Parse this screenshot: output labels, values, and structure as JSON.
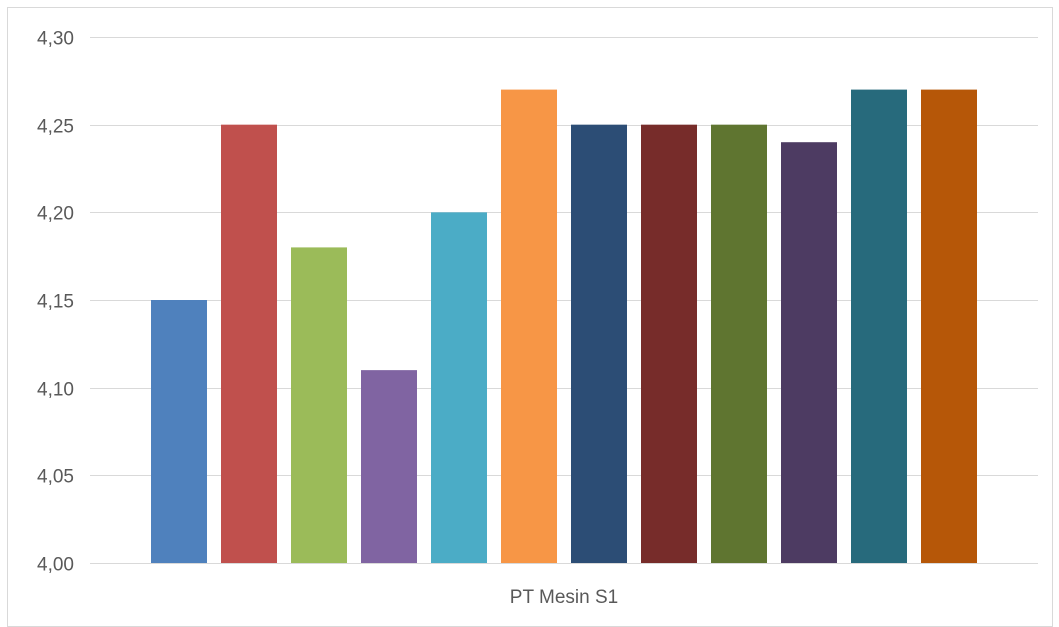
{
  "chart_data": {
    "type": "bar",
    "categories": [
      "PT Mesin S1"
    ],
    "series": [
      {
        "values": [
          4.15
        ],
        "color": "#4f81bd"
      },
      {
        "values": [
          4.25
        ],
        "color": "#c0504d"
      },
      {
        "values": [
          4.18
        ],
        "color": "#9bbb59"
      },
      {
        "values": [
          4.11
        ],
        "color": "#8064a2"
      },
      {
        "values": [
          4.2
        ],
        "color": "#4bacc6"
      },
      {
        "values": [
          4.27
        ],
        "color": "#f79646"
      },
      {
        "values": [
          4.25
        ],
        "color": "#2c4d75"
      },
      {
        "values": [
          4.25
        ],
        "color": "#772c2a"
      },
      {
        "values": [
          4.25
        ],
        "color": "#5f7530"
      },
      {
        "values": [
          4.24
        ],
        "color": "#4d3b62"
      },
      {
        "values": [
          4.27
        ],
        "color": "#276a7c"
      },
      {
        "values": [
          4.27
        ],
        "color": "#b65708"
      }
    ],
    "ylim": [
      4.0,
      4.3
    ],
    "yticks": [
      "4,00",
      "4,05",
      "4,10",
      "4,15",
      "4,20",
      "4,25",
      "4,30"
    ],
    "ytick_values": [
      4.0,
      4.05,
      4.1,
      4.15,
      4.2,
      4.25,
      4.3
    ],
    "grid": true,
    "legend": "none"
  }
}
